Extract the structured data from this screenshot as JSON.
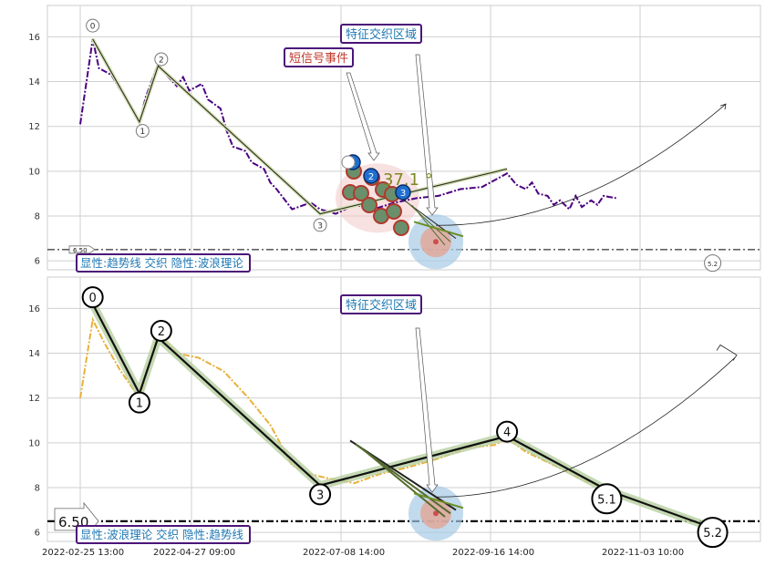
{
  "chart_data": [
    {
      "type": "line",
      "panel": "top",
      "ylim": [
        5.6,
        17.4
      ],
      "yticks": [
        6,
        8,
        10,
        12,
        14,
        16
      ],
      "grid": true,
      "x_axis_ticks": [
        "2022-02-25 13:00",
        "2022-04-27 09:00",
        "2022-07-08 14:00",
        "2022-09-16 14:00",
        "2022-11-03 10:00"
      ],
      "series": [
        {
          "role": "price",
          "color": "#4b0082",
          "style": "dash-dot",
          "x": [
            "2022-02-25",
            "2022-03-01",
            "2022-03-03",
            "2022-03-07",
            "2022-03-10",
            "2022-03-14",
            "2022-03-16",
            "2022-03-18",
            "2022-03-22",
            "2022-03-24",
            "2022-03-28",
            "2022-03-30",
            "2022-04-01",
            "2022-04-05",
            "2022-04-07",
            "2022-04-11",
            "2022-04-13",
            "2022-04-15",
            "2022-04-19",
            "2022-04-21",
            "2022-04-25",
            "2022-04-27",
            "2022-04-29",
            "2022-05-04",
            "2022-05-06",
            "2022-05-10",
            "2022-05-13",
            "2022-05-18",
            "2022-05-24",
            "2022-05-30",
            "2022-06-06",
            "2022-06-13",
            "2022-06-20",
            "2022-06-27",
            "2022-07-04",
            "2022-07-08",
            "2022-07-12",
            "2022-07-15",
            "2022-07-18",
            "2022-07-20",
            "2022-07-22",
            "2022-07-25",
            "2022-07-27",
            "2022-07-29",
            "2022-08-01",
            "2022-08-03",
            "2022-08-05",
            "2022-08-08",
            "2022-08-10",
            "2022-08-12",
            "2022-08-16"
          ],
          "y": [
            12.1,
            15.9,
            14.6,
            14.3,
            13.6,
            12.7,
            12.2,
            13.3,
            14.8,
            14.4,
            13.8,
            14.2,
            13.6,
            13.9,
            13.2,
            12.8,
            11.8,
            11.1,
            10.9,
            10.4,
            10.1,
            9.5,
            9.2,
            8.3,
            8.4,
            8.6,
            8.3,
            8.1,
            8.5,
            8.3,
            8.6,
            8.8,
            8.9,
            9.2,
            9.3,
            9.6,
            9.9,
            9.4,
            9.2,
            9.5,
            9.0,
            8.9,
            8.5,
            8.7,
            8.3,
            8.9,
            8.4,
            8.7,
            8.5,
            8.9,
            8.8
          ]
        },
        {
          "role": "trendline",
          "color": "#556b2f",
          "x": [
            "2022-03-01",
            "2022-03-16",
            "2022-03-22",
            "2022-05-13",
            "2022-07-12"
          ],
          "y": [
            15.9,
            12.2,
            14.7,
            8.1,
            10.1
          ]
        }
      ],
      "wave_labels": [
        {
          "label": "0",
          "x": "2022-03-01",
          "y": 16.5
        },
        {
          "label": "1",
          "x": "2022-03-17",
          "y": 11.8
        },
        {
          "label": "2",
          "x": "2022-03-23",
          "y": 15.0
        },
        {
          "label": "3",
          "x": "2022-05-13",
          "y": 7.6
        },
        {
          "label": "5.2",
          "x": "2022-09-16",
          "y": 5.9
        }
      ],
      "signal_markers": [
        "1",
        "2",
        "3"
      ],
      "angle_label": "37.1 °",
      "ref_line": {
        "y": 6.5,
        "label": "6.50"
      },
      "annotations": {
        "short_signal": "短信号事件",
        "feature_zone": "特征交织区域"
      },
      "caption": "显性:趋势线 交织 隐性:波浪理论"
    },
    {
      "type": "line",
      "panel": "bottom",
      "ylim": [
        5.6,
        17.4
      ],
      "yticks": [
        6,
        8,
        10,
        12,
        14,
        16
      ],
      "grid": true,
      "series": [
        {
          "role": "price",
          "color": "#e8b13a",
          "style": "dash-dot",
          "x": [
            "2022-02-25",
            "2022-03-01",
            "2022-03-05",
            "2022-03-10",
            "2022-03-16",
            "2022-03-22",
            "2022-03-28",
            "2022-04-04",
            "2022-04-12",
            "2022-04-20",
            "2022-04-27",
            "2022-05-04",
            "2022-05-10",
            "2022-05-16",
            "2022-05-24",
            "2022-06-01",
            "2022-06-10",
            "2022-06-20",
            "2022-06-30",
            "2022-07-08",
            "2022-07-12",
            "2022-07-18",
            "2022-07-24",
            "2022-07-30",
            "2022-08-06",
            "2022-08-12"
          ],
          "y": [
            12.0,
            15.5,
            14.4,
            13.2,
            12.0,
            14.9,
            14.0,
            13.8,
            13.2,
            12.0,
            10.8,
            9.0,
            8.6,
            8.4,
            8.2,
            8.6,
            8.9,
            9.3,
            9.8,
            9.9,
            10.2,
            9.6,
            9.2,
            8.8,
            8.3,
            8.0
          ]
        },
        {
          "role": "wave",
          "color": "#000000",
          "x": [
            "2022-03-01",
            "2022-03-16",
            "2022-03-22",
            "2022-05-13",
            "2022-07-12",
            "2022-08-13",
            "2022-09-16"
          ],
          "y": [
            16.2,
            12.2,
            14.7,
            8.1,
            10.3,
            7.9,
            6.2
          ]
        }
      ],
      "wave_labels": [
        {
          "label": "0",
          "x": "2022-03-01",
          "y": 16.5
        },
        {
          "label": "1",
          "x": "2022-03-16",
          "y": 11.8
        },
        {
          "label": "2",
          "x": "2022-03-23",
          "y": 15.0
        },
        {
          "label": "3",
          "x": "2022-05-13",
          "y": 7.7
        },
        {
          "label": "4",
          "x": "2022-07-12",
          "y": 10.5
        },
        {
          "label": "5.1",
          "x": "2022-08-13",
          "y": 7.5
        },
        {
          "label": "5.2",
          "x": "2022-09-16",
          "y": 6.0
        }
      ],
      "ref_line": {
        "y": 6.5,
        "label": "6.50"
      },
      "annotations": {
        "feature_zone": "特征交织区域"
      },
      "caption": "显性:波浪理论 交织 隐性:趋势线"
    }
  ]
}
